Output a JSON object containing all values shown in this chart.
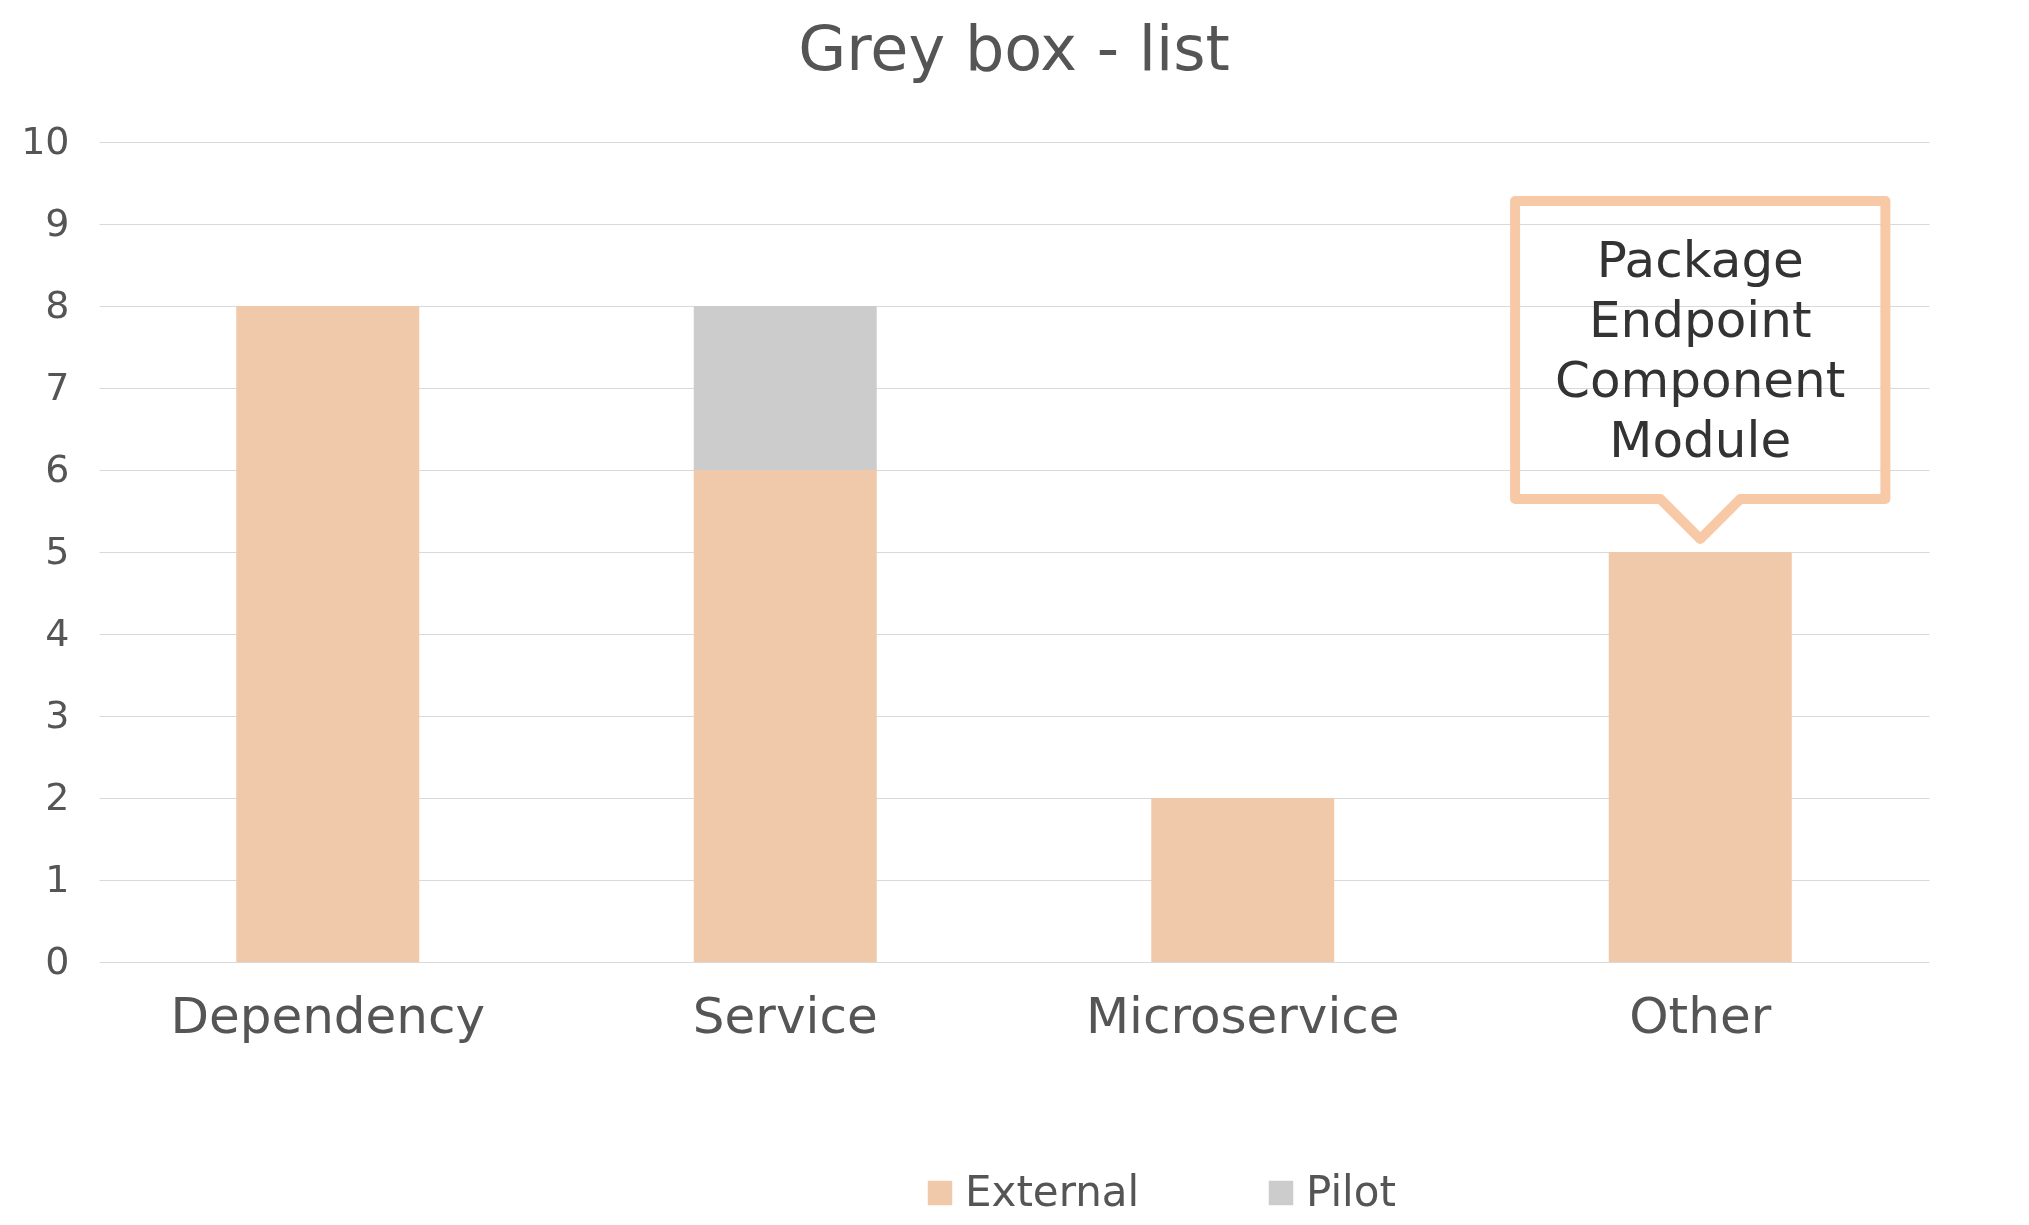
{
  "chart_data": {
    "type": "bar",
    "title": "Grey box - list",
    "categories": [
      "Dependency",
      "Service",
      "Microservice",
      "Other"
    ],
    "stacked": true,
    "series": [
      {
        "name": "External",
        "color": "#f0c9aa",
        "values": [
          8,
          6,
          2,
          5
        ]
      },
      {
        "name": "Pilot",
        "color": "#cccccc",
        "values": [
          null,
          2,
          null,
          null
        ]
      }
    ],
    "ylim": [
      0,
      10
    ],
    "yticks": [
      0,
      1,
      2,
      3,
      4,
      5,
      6,
      7,
      8,
      9,
      10
    ],
    "grid": "y",
    "legend": "bottom",
    "annotations": [
      {
        "text": "Package\nEndpoint\nComponent\nModule",
        "x": "Other",
        "y": 5
      }
    ]
  }
}
